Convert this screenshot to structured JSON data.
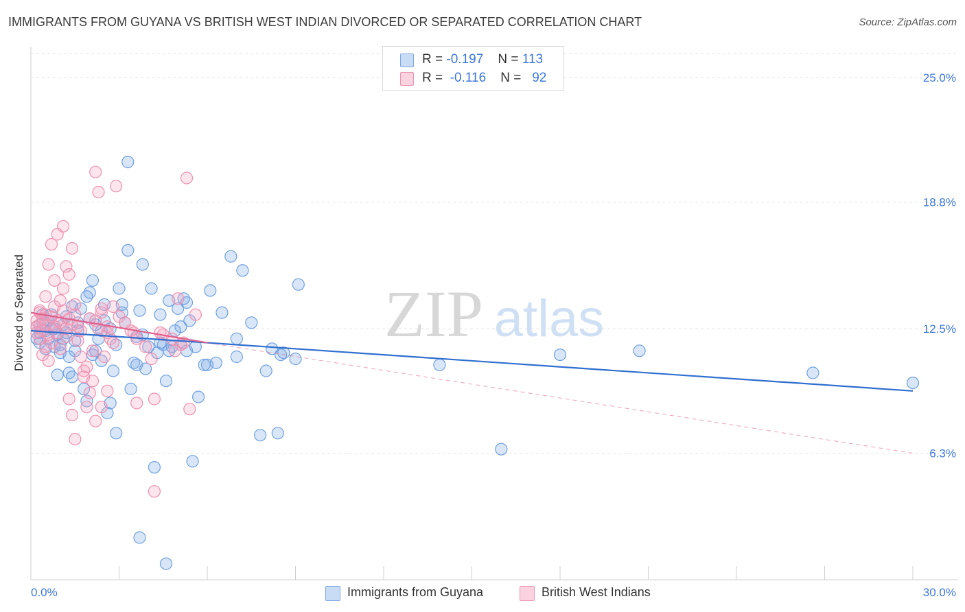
{
  "title": "IMMIGRANTS FROM GUYANA VS BRITISH WEST INDIAN DIVORCED OR SEPARATED CORRELATION CHART",
  "source": "Source: ZipAtlas.com",
  "watermark": {
    "zip": "ZIP",
    "atlas": "atlas"
  },
  "legend": {
    "rows": [
      {
        "r_label": "R =",
        "r_value": "-0.197",
        "n_label": "N =",
        "n_value": "113",
        "color": "#a8c8f0"
      },
      {
        "r_label": "R =",
        "r_value": "-0.116",
        "n_label": "N =",
        "n_value": "92",
        "color": "#f7b6cb"
      }
    ]
  },
  "bottom_legend": [
    {
      "label": "Immigrants from Guyana",
      "color": "#a8c8f0"
    },
    {
      "label": "British West Indians",
      "color": "#f7b6cb"
    }
  ],
  "chart_data": {
    "type": "scatter",
    "title": "IMMIGRANTS FROM GUYANA VS BRITISH WEST INDIAN DIVORCED OR SEPARATED CORRELATION CHART",
    "xlabel": "",
    "ylabel": "Divorced or Separated",
    "xlim": [
      0,
      30
    ],
    "ylim": [
      0,
      26.2
    ],
    "x_tick_labels": [
      "0.0%",
      "30.0%"
    ],
    "y_ticks": [
      6.3,
      12.5,
      18.8,
      25.0
    ],
    "y_tick_labels": [
      "6.3%",
      "12.5%",
      "18.8%",
      "25.0%"
    ],
    "grid": "horizontal dashed",
    "legend_position": "top-center",
    "series": [
      {
        "name": "Immigrants from Guyana",
        "color": "#6fa0e0",
        "fill": "rgba(120,165,230,0.28)",
        "trend": {
          "x0": 0.0,
          "y0": 12.4,
          "x1": 30.0,
          "y1": 9.4,
          "color": "#2f6fd0"
        },
        "points": [
          [
            0.2,
            12.6
          ],
          [
            0.3,
            12.3
          ],
          [
            0.2,
            12.0
          ],
          [
            0.4,
            12.8
          ],
          [
            0.5,
            12.4
          ],
          [
            0.3,
            11.8
          ],
          [
            0.6,
            12.9
          ],
          [
            0.7,
            12.5
          ],
          [
            0.4,
            13.2
          ],
          [
            0.8,
            11.6
          ],
          [
            0.9,
            12.2
          ],
          [
            1.0,
            11.3
          ],
          [
            1.1,
            12.7
          ],
          [
            1.2,
            13.1
          ],
          [
            0.9,
            10.2
          ],
          [
            1.3,
            11.1
          ],
          [
            1.4,
            10.1
          ],
          [
            1.5,
            11.9
          ],
          [
            1.6,
            12.4
          ],
          [
            1.7,
            13.5
          ],
          [
            1.8,
            9.5
          ],
          [
            1.9,
            8.9
          ],
          [
            2.0,
            14.3
          ],
          [
            2.1,
            14.9
          ],
          [
            2.2,
            11.4
          ],
          [
            2.3,
            12.0
          ],
          [
            2.4,
            10.9
          ],
          [
            2.5,
            13.7
          ],
          [
            2.6,
            8.3
          ],
          [
            2.7,
            12.5
          ],
          [
            2.8,
            10.4
          ],
          [
            2.9,
            11.7
          ],
          [
            3.0,
            14.5
          ],
          [
            3.1,
            13.3
          ],
          [
            3.2,
            12.8
          ],
          [
            3.3,
            16.4
          ],
          [
            3.4,
            9.5
          ],
          [
            3.5,
            10.8
          ],
          [
            3.6,
            12.1
          ],
          [
            3.7,
            13.4
          ],
          [
            3.8,
            15.7
          ],
          [
            3.9,
            10.5
          ],
          [
            4.0,
            11.6
          ],
          [
            4.1,
            14.5
          ],
          [
            4.2,
            5.6
          ],
          [
            4.3,
            11.3
          ],
          [
            4.4,
            13.2
          ],
          [
            4.5,
            11.7
          ],
          [
            4.6,
            9.9
          ],
          [
            4.7,
            13.9
          ],
          [
            4.8,
            11.6
          ],
          [
            4.9,
            12.4
          ],
          [
            5.0,
            13.5
          ],
          [
            5.1,
            11.7
          ],
          [
            5.2,
            14.0
          ],
          [
            5.3,
            11.4
          ],
          [
            5.4,
            12.9
          ],
          [
            5.5,
            5.9
          ],
          [
            5.6,
            11.6
          ],
          [
            5.7,
            9.1
          ],
          [
            5.9,
            10.7
          ],
          [
            6.1,
            14.4
          ],
          [
            6.3,
            10.8
          ],
          [
            6.5,
            13.3
          ],
          [
            6.8,
            16.1
          ],
          [
            7.0,
            12.0
          ],
          [
            7.2,
            15.4
          ],
          [
            7.5,
            12.8
          ],
          [
            7.8,
            7.2
          ],
          [
            8.0,
            10.4
          ],
          [
            8.2,
            11.5
          ],
          [
            8.4,
            7.3
          ],
          [
            8.6,
            11.3
          ],
          [
            3.7,
            2.1
          ],
          [
            4.6,
            0.8
          ],
          [
            9.1,
            14.7
          ],
          [
            3.3,
            20.8
          ],
          [
            2.7,
            8.8
          ],
          [
            1.0,
            11.7
          ],
          [
            2.1,
            11.2
          ],
          [
            0.5,
            11.5
          ],
          [
            0.6,
            12.0
          ],
          [
            1.2,
            12.3
          ],
          [
            1.5,
            11.4
          ],
          [
            2.4,
            12.4
          ],
          [
            3.1,
            13.7
          ],
          [
            3.8,
            12.2
          ],
          [
            4.4,
            11.8
          ],
          [
            5.1,
            12.6
          ],
          [
            6.0,
            10.7
          ],
          [
            7.0,
            11.1
          ],
          [
            8.5,
            11.2
          ],
          [
            9.0,
            11.0
          ],
          [
            13.9,
            10.7
          ],
          [
            16.0,
            6.5
          ],
          [
            18.0,
            11.2
          ],
          [
            20.7,
            11.4
          ],
          [
            26.6,
            10.3
          ],
          [
            30.0,
            9.8
          ],
          [
            1.9,
            14.1
          ],
          [
            2.2,
            12.7
          ],
          [
            0.8,
            12.5
          ],
          [
            1.1,
            12.0
          ],
          [
            1.3,
            10.3
          ],
          [
            1.6,
            12.8
          ],
          [
            2.0,
            13.0
          ],
          [
            2.9,
            7.3
          ],
          [
            3.6,
            10.7
          ],
          [
            4.7,
            11.4
          ],
          [
            5.3,
            13.8
          ],
          [
            0.7,
            13.2
          ],
          [
            1.4,
            13.6
          ],
          [
            2.5,
            12.9
          ]
        ]
      },
      {
        "name": "British West Indians",
        "color": "#ef8fae",
        "fill": "rgba(245,160,190,0.28)",
        "trend": {
          "x0": 0.0,
          "y0": 13.3,
          "x1": 6.0,
          "y1": 11.8,
          "color": "#e0608c"
        },
        "trend_ext": {
          "x0": 6.0,
          "y0": 11.8,
          "x1": 30.0,
          "y1": 6.3
        },
        "points": [
          [
            0.2,
            12.9
          ],
          [
            0.3,
            13.3
          ],
          [
            0.2,
            12.6
          ],
          [
            0.4,
            13.0
          ],
          [
            0.5,
            12.7
          ],
          [
            0.3,
            13.4
          ],
          [
            0.6,
            12.2
          ],
          [
            0.7,
            13.1
          ],
          [
            0.4,
            12.4
          ],
          [
            0.8,
            13.6
          ],
          [
            0.9,
            12.9
          ],
          [
            1.0,
            13.9
          ],
          [
            1.1,
            14.5
          ],
          [
            1.2,
            12.1
          ],
          [
            1.3,
            15.2
          ],
          [
            1.4,
            16.5
          ],
          [
            1.5,
            13.7
          ],
          [
            1.6,
            12.6
          ],
          [
            1.7,
            11.1
          ],
          [
            1.8,
            10.4
          ],
          [
            1.9,
            8.6
          ],
          [
            2.0,
            13.0
          ],
          [
            2.1,
            9.9
          ],
          [
            2.2,
            7.9
          ],
          [
            2.3,
            12.5
          ],
          [
            2.4,
            13.3
          ],
          [
            2.5,
            11.1
          ],
          [
            2.6,
            9.4
          ],
          [
            2.7,
            12.0
          ],
          [
            2.8,
            13.6
          ],
          [
            0.5,
            14.1
          ],
          [
            0.6,
            15.7
          ],
          [
            0.7,
            16.7
          ],
          [
            0.9,
            17.2
          ],
          [
            1.1,
            17.6
          ],
          [
            0.8,
            14.9
          ],
          [
            1.2,
            15.6
          ],
          [
            2.2,
            20.3
          ],
          [
            2.3,
            19.3
          ],
          [
            2.9,
            19.6
          ],
          [
            5.3,
            20.0
          ],
          [
            1.3,
            9.0
          ],
          [
            1.4,
            8.2
          ],
          [
            1.5,
            7.0
          ],
          [
            2.0,
            9.3
          ],
          [
            2.4,
            8.6
          ],
          [
            3.6,
            8.8
          ],
          [
            4.2,
            9.0
          ],
          [
            4.2,
            4.4
          ],
          [
            5.4,
            8.5
          ],
          [
            3.4,
            12.4
          ],
          [
            3.5,
            12.3
          ],
          [
            3.0,
            13.1
          ],
          [
            2.6,
            12.3
          ],
          [
            4.1,
            11.0
          ],
          [
            4.5,
            12.2
          ],
          [
            4.8,
            12.0
          ],
          [
            5.0,
            14.0
          ],
          [
            5.1,
            11.7
          ],
          [
            5.6,
            13.2
          ],
          [
            0.3,
            12.0
          ],
          [
            0.4,
            11.2
          ],
          [
            0.5,
            11.6
          ],
          [
            0.6,
            10.9
          ],
          [
            0.7,
            11.8
          ],
          [
            0.9,
            12.3
          ],
          [
            1.0,
            12.8
          ],
          [
            1.2,
            12.5
          ],
          [
            1.3,
            13.0
          ],
          [
            1.4,
            12.7
          ],
          [
            1.5,
            13.2
          ],
          [
            1.6,
            11.9
          ],
          [
            1.8,
            10.1
          ],
          [
            1.9,
            10.6
          ],
          [
            2.1,
            11.4
          ],
          [
            2.2,
            12.9
          ],
          [
            2.4,
            13.5
          ],
          [
            2.6,
            12.6
          ],
          [
            2.8,
            11.8
          ],
          [
            3.2,
            12.8
          ],
          [
            3.6,
            12.0
          ],
          [
            3.9,
            11.6
          ],
          [
            4.4,
            12.3
          ],
          [
            4.9,
            11.4
          ],
          [
            5.2,
            11.8
          ],
          [
            0.2,
            12.3
          ],
          [
            0.3,
            12.7
          ],
          [
            0.5,
            13.2
          ],
          [
            0.8,
            12.6
          ],
          [
            1.1,
            13.4
          ],
          [
            1.7,
            12.4
          ],
          [
            1.0,
            11.5
          ]
        ]
      }
    ]
  }
}
